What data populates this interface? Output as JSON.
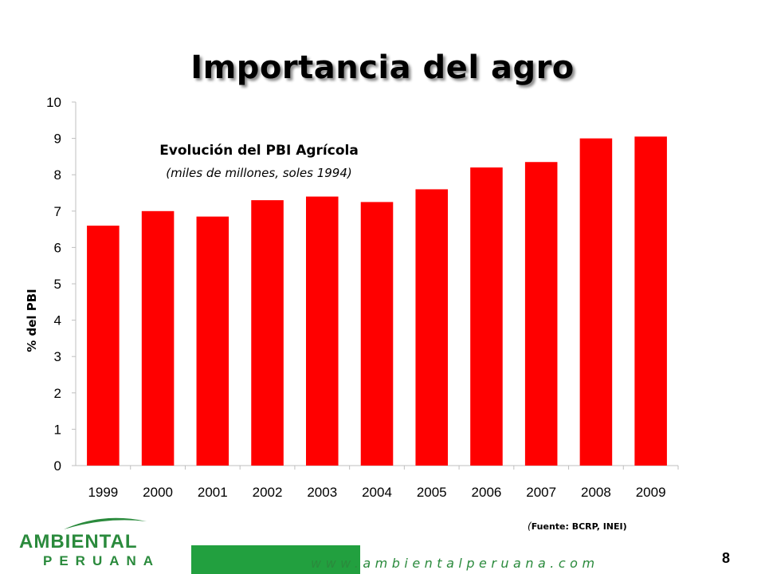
{
  "slide": {
    "title": "Importancia del agro",
    "source_paren": "(",
    "source": "Fuente: BCRP, INEI)",
    "url": "www.ambientalperuana.com",
    "page_number": "8"
  },
  "logo": {
    "name": "AMBIENTAL",
    "sub": "PERUANA"
  },
  "colors": {
    "bar": "#ff0000",
    "brand_green": "#22a03f",
    "grid": "#d9d9d9"
  },
  "chart_data": {
    "type": "bar",
    "title": "Evolución del PBI Agrícola",
    "subtitle": "(miles de millones, soles 1994)",
    "xlabel": "",
    "ylabel": "% del PBI",
    "categories": [
      "1999",
      "2000",
      "2001",
      "2002",
      "2003",
      "2004",
      "2005",
      "2006",
      "2007",
      "2008",
      "2009"
    ],
    "values": [
      6.6,
      7.0,
      6.85,
      7.3,
      7.4,
      7.25,
      7.6,
      8.2,
      8.35,
      9.0,
      9.05
    ],
    "ylim": [
      0,
      10
    ],
    "yticks": [
      0,
      1,
      2,
      3,
      4,
      5,
      6,
      7,
      8,
      9,
      10
    ],
    "grid": false,
    "legend": "none"
  }
}
